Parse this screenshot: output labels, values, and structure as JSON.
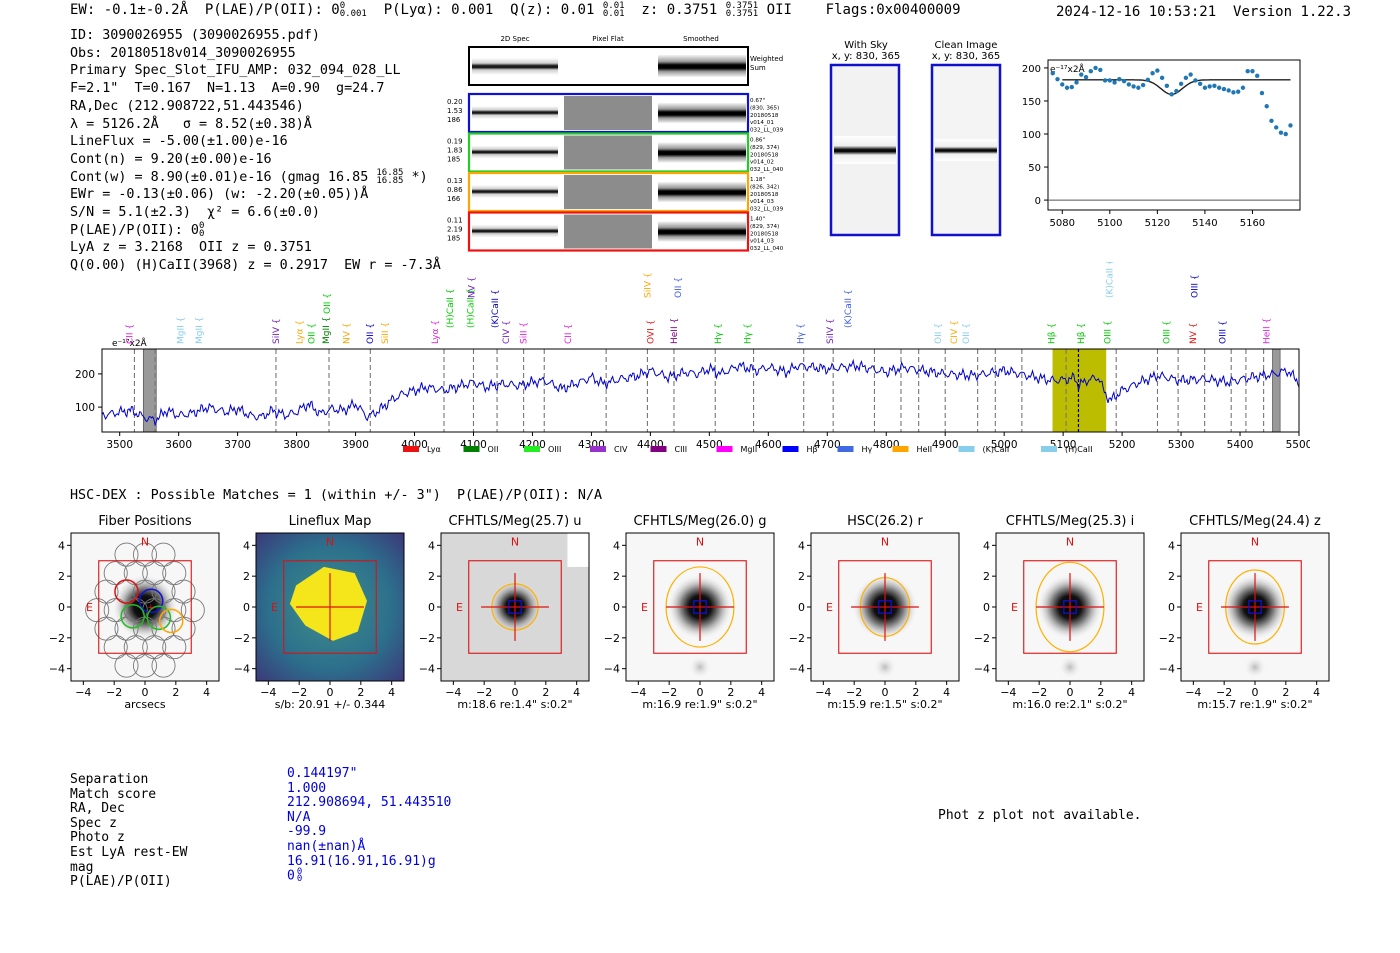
{
  "header": {
    "ew": "EW: -0.1±-0.2Å",
    "plae": "P(LAE)/P(OII): 0",
    "plae_sup": "0",
    "plae_sub": "0.001",
    "plya": "P(Lyα): 0.001",
    "qz": "Q(z): 0.01",
    "qz_sup": "0.01",
    "qz_sub": "0.01",
    "z": "z: 0.3751",
    "z_sup": "0.3751",
    "z_sub": "0.3751",
    "z_line": "OII",
    "flags": "Flags:0x00400009",
    "datetime": "2024-12-16 10:53:21",
    "version": "Version 1.22.3"
  },
  "info": {
    "id": "ID: 3090026955 (3090026955.pdf)",
    "obs": "Obs: 20180518v014_3090026955",
    "primary": "Primary Spec_Slot_IFU_AMP: 032_094_028_LL",
    "fparams": "F=2.1\"  T=0.167  N=1.13  A=0.90  g=24.7",
    "radec": "RA,Dec (212.908722,51.443546)",
    "lambda": "λ = 5126.2Å   σ = 8.52(±0.38)Å",
    "lineflux": "LineFlux = -5.00(±1.00)e-16",
    "contn": "Cont(n) = 9.20(±0.00)e-16",
    "contw": "Cont(w) = 8.90(±0.01)e-16 (gmag 16.85",
    "contw_sup": "16.85",
    "contw_sub": "16.85",
    "contw_end": " *)",
    "ewr": "EWr = -0.13(±0.06) (w: -2.20(±0.05))Å",
    "sn": "S/N = 5.1(±2.3)  χ² = 6.6(±0.0)",
    "plae": "P(LAE)/P(OII): 0",
    "plae_sup": "0",
    "plae_sub": "0",
    "lya": "LyA z = 3.2168  OII z = 0.3751",
    "q": "Q(0.00) (H)CaII(3968) z = 0.2917  EW r = -7.3Å"
  },
  "spec2d": {
    "col_titles": [
      "2D Spec",
      "Pixel Flat",
      "Smoothed"
    ],
    "weighted_label": "Weighted\nSum",
    "rows": [
      {
        "left": [
          "0.20",
          "1.53",
          "186"
        ],
        "right": [
          "0.67\"",
          "(830, 365)",
          "20180518",
          "v014_01",
          "032_LL_039"
        ],
        "color": "#1010d0"
      },
      {
        "left": [
          "0.19",
          "1.83",
          "185"
        ],
        "right": [
          "0.86\"",
          "(829, 374)",
          "20180518",
          "v014_02",
          "032_LL_040"
        ],
        "color": "#22cc22"
      },
      {
        "left": [
          "0.13",
          "0.86",
          "166"
        ],
        "right": [
          "1.18\"",
          "(826, 342)",
          "20180518",
          "v014_03",
          "032_LL_039"
        ],
        "color": "#ffa500"
      },
      {
        "left": [
          "0.11",
          "2.19",
          "185"
        ],
        "right": [
          "1.40\"",
          "(829, 374)",
          "20180518",
          "v014_03",
          "032_LL_040"
        ],
        "color": "#ee1111"
      }
    ]
  },
  "sky_panels": [
    {
      "title": "With Sky",
      "coords": "x, y: 830, 365"
    },
    {
      "title": "Clean Image",
      "coords": "x, y: 830, 365"
    }
  ],
  "zoom_chart": {
    "type": "scatter",
    "ylabel_note": "e⁻¹⁷x2Å",
    "x_ticks": [
      "5080",
      "5100",
      "5120",
      "5140",
      "5160"
    ],
    "y_ticks": [
      "0",
      "50",
      "100",
      "150",
      "200"
    ],
    "xlim": [
      5074,
      5180
    ],
    "ylim": [
      -15,
      212
    ],
    "points": [
      [
        5076,
        192
      ],
      [
        5078,
        183
      ],
      [
        5080,
        175
      ],
      [
        5082,
        170
      ],
      [
        5084,
        171
      ],
      [
        5086,
        178
      ],
      [
        5088,
        190
      ],
      [
        5090,
        186
      ],
      [
        5092,
        195
      ],
      [
        5094,
        200
      ],
      [
        5096,
        197
      ],
      [
        5098,
        181
      ],
      [
        5100,
        181
      ],
      [
        5102,
        178
      ],
      [
        5104,
        183
      ],
      [
        5106,
        180
      ],
      [
        5108,
        175
      ],
      [
        5110,
        172
      ],
      [
        5112,
        170
      ],
      [
        5114,
        174
      ],
      [
        5116,
        182
      ],
      [
        5118,
        192
      ],
      [
        5120,
        196
      ],
      [
        5122,
        185
      ],
      [
        5124,
        173
      ],
      [
        5126,
        160
      ],
      [
        5128,
        165
      ],
      [
        5130,
        176
      ],
      [
        5132,
        185
      ],
      [
        5134,
        190
      ],
      [
        5136,
        181
      ],
      [
        5138,
        176
      ],
      [
        5140,
        170
      ],
      [
        5142,
        172
      ],
      [
        5144,
        173
      ],
      [
        5146,
        170
      ],
      [
        5148,
        168
      ],
      [
        5150,
        166
      ],
      [
        5152,
        163
      ],
      [
        5154,
        164
      ],
      [
        5156,
        170
      ],
      [
        5158,
        195
      ],
      [
        5160,
        195
      ],
      [
        5162,
        188
      ],
      [
        5164,
        162
      ],
      [
        5166,
        142
      ],
      [
        5168,
        120
      ],
      [
        5170,
        110
      ],
      [
        5172,
        102
      ],
      [
        5174,
        100
      ],
      [
        5176,
        113
      ]
    ],
    "model": {
      "base": 182,
      "depth": 22,
      "center": 5126,
      "sigma": 4.5,
      "xmin": 5080,
      "xmax": 5176
    }
  },
  "chart_data": {
    "type": "line",
    "title": "",
    "ylabel_note": "e⁻¹⁷x2Å",
    "xlim": [
      3470,
      5500
    ],
    "ylim": [
      25,
      275
    ],
    "x_ticks": [
      "3500",
      "3600",
      "3700",
      "3800",
      "3900",
      "4000",
      "4100",
      "4200",
      "4300",
      "4400",
      "4500",
      "4600",
      "4700",
      "4800",
      "4900",
      "5000",
      "5100",
      "5200",
      "5300",
      "5400",
      "5500"
    ],
    "y_ticks": [
      "100",
      "200"
    ],
    "anchors": [
      [
        3470,
        75
      ],
      [
        3500,
        85
      ],
      [
        3520,
        90
      ],
      [
        3540,
        70
      ],
      [
        3560,
        60
      ],
      [
        3580,
        90
      ],
      [
        3600,
        75
      ],
      [
        3620,
        80
      ],
      [
        3650,
        100
      ],
      [
        3680,
        85
      ],
      [
        3700,
        95
      ],
      [
        3720,
        75
      ],
      [
        3740,
        70
      ],
      [
        3760,
        90
      ],
      [
        3780,
        75
      ],
      [
        3800,
        85
      ],
      [
        3820,
        110
      ],
      [
        3840,
        80
      ],
      [
        3860,
        95
      ],
      [
        3880,
        90
      ],
      [
        3900,
        110
      ],
      [
        3920,
        70
      ],
      [
        3940,
        90
      ],
      [
        3960,
        120
      ],
      [
        3980,
        140
      ],
      [
        4000,
        150
      ],
      [
        4020,
        160
      ],
      [
        4050,
        150
      ],
      [
        4080,
        165
      ],
      [
        4100,
        175
      ],
      [
        4120,
        160
      ],
      [
        4150,
        170
      ],
      [
        4180,
        165
      ],
      [
        4200,
        175
      ],
      [
        4220,
        180
      ],
      [
        4250,
        155
      ],
      [
        4280,
        175
      ],
      [
        4300,
        190
      ],
      [
        4320,
        170
      ],
      [
        4350,
        185
      ],
      [
        4380,
        195
      ],
      [
        4400,
        210
      ],
      [
        4430,
        190
      ],
      [
        4460,
        205
      ],
      [
        4480,
        200
      ],
      [
        4500,
        215
      ],
      [
        4520,
        200
      ],
      [
        4550,
        225
      ],
      [
        4580,
        210
      ],
      [
        4600,
        220
      ],
      [
        4630,
        205
      ],
      [
        4650,
        225
      ],
      [
        4700,
        215
      ],
      [
        4750,
        225
      ],
      [
        4800,
        205
      ],
      [
        4830,
        220
      ],
      [
        4860,
        210
      ],
      [
        4900,
        200
      ],
      [
        4950,
        195
      ],
      [
        5000,
        210
      ],
      [
        5040,
        195
      ],
      [
        5080,
        180
      ],
      [
        5100,
        182
      ],
      [
        5120,
        188
      ],
      [
        5126,
        165
      ],
      [
        5140,
        180
      ],
      [
        5160,
        190
      ],
      [
        5170,
        145
      ],
      [
        5180,
        120
      ],
      [
        5200,
        150
      ],
      [
        5230,
        175
      ],
      [
        5260,
        195
      ],
      [
        5300,
        180
      ],
      [
        5340,
        185
      ],
      [
        5380,
        175
      ],
      [
        5420,
        190
      ],
      [
        5460,
        200
      ],
      [
        5480,
        210
      ],
      [
        5500,
        175
      ]
    ],
    "dashed_lines": [
      3525,
      3560,
      3765,
      3855,
      3925,
      4050,
      4100,
      4140,
      4185,
      4220,
      4325,
      4395,
      4440,
      4510,
      4575,
      4660,
      4710,
      4780,
      4825,
      4855,
      4900,
      4955,
      4985,
      5030,
      5105,
      5190,
      5260,
      5295,
      5340,
      5385,
      5410,
      5440
    ],
    "gray_bands": [
      [
        3540,
        3562
      ],
      [
        5455,
        5468
      ]
    ],
    "yellow_band": [
      5082,
      5173
    ],
    "center_line": 5126,
    "annotations": [
      {
        "text": "CII",
        "x": 3522,
        "color": "#e020e0",
        "level": 0
      },
      {
        "text": "MgII",
        "x": 3608,
        "color": "#87ceeb",
        "level": 0
      },
      {
        "text": "MgII",
        "x": 3640,
        "color": "#87ceeb",
        "level": 0
      },
      {
        "text": "SiIV",
        "x": 3770,
        "color": "#7020c0",
        "level": 0
      },
      {
        "text": "Lyα",
        "x": 3810,
        "color": "#ffa500",
        "level": 0
      },
      {
        "text": "OII",
        "x": 3830,
        "color": "#00cc00",
        "level": 0
      },
      {
        "text": "MgII",
        "x": 3855,
        "color": "#008000",
        "level": 0
      },
      {
        "text": "OII",
        "x": 3857,
        "color": "#00cc00",
        "level": 2
      },
      {
        "text": "NV",
        "x": 3890,
        "color": "#ffa500",
        "level": 0
      },
      {
        "text": "OII",
        "x": 3930,
        "color": "#0000cc",
        "level": 0
      },
      {
        "text": "SiII",
        "x": 3955,
        "color": "#ffa500",
        "level": 0
      },
      {
        "text": "Lyα",
        "x": 4040,
        "color": "#e020e0",
        "level": 0
      },
      {
        "text": "(H)CaII",
        "x": 4065,
        "color": "#00cc00",
        "level": 1
      },
      {
        "text": "(H)CaII",
        "x": 4100,
        "color": "#00cc00",
        "level": 1
      },
      {
        "text": "NV",
        "x": 4102,
        "color": "#7020c0",
        "level": 3
      },
      {
        "text": "(K)CaII",
        "x": 4142,
        "color": "#0000cc",
        "level": 1
      },
      {
        "text": "CIV",
        "x": 4160,
        "color": "#7020c0",
        "level": 0
      },
      {
        "text": "SiII",
        "x": 4190,
        "color": "#e020e0",
        "level": 0
      },
      {
        "text": "CII",
        "x": 4265,
        "color": "#e020e0",
        "level": 0
      },
      {
        "text": "SiIV",
        "x": 4400,
        "color": "#ffa500",
        "level": 3
      },
      {
        "text": "OVI",
        "x": 4405,
        "color": "#ee1111",
        "level": 0
      },
      {
        "text": "HeII",
        "x": 4445,
        "color": "#800080",
        "level": 0
      },
      {
        "text": "OII",
        "x": 4452,
        "color": "#4060e0",
        "level": 3
      },
      {
        "text": "Hγ",
        "x": 4520,
        "color": "#00cc00",
        "level": 0
      },
      {
        "text": "Hγ",
        "x": 4570,
        "color": "#00cc00",
        "level": 0
      },
      {
        "text": "Hγ",
        "x": 4660,
        "color": "#4060e0",
        "level": 0
      },
      {
        "text": "SiIV",
        "x": 4710,
        "color": "#7020c0",
        "level": 0
      },
      {
        "text": "(K)CaII",
        "x": 4740,
        "color": "#4060e0",
        "level": 1
      },
      {
        "text": "OII",
        "x": 4893,
        "color": "#87ceeb",
        "level": 0
      },
      {
        "text": "CIV",
        "x": 4920,
        "color": "#ffa500",
        "level": 0
      },
      {
        "text": "OII",
        "x": 4940,
        "color": "#87ceeb",
        "level": 0
      },
      {
        "text": "Hβ",
        "x": 5085,
        "color": "#00cc00",
        "level": 0
      },
      {
        "text": "Hβ",
        "x": 5135,
        "color": "#00cc00",
        "level": 0
      },
      {
        "text": "OIII",
        "x": 5180,
        "color": "#00cc00",
        "level": 0
      },
      {
        "text": "(K)CaII",
        "x": 5184,
        "color": "#87ceeb",
        "level": 3
      },
      {
        "text": "OIII",
        "x": 5280,
        "color": "#00cc00",
        "level": 0
      },
      {
        "text": "NV",
        "x": 5325,
        "color": "#ee1111",
        "level": 0
      },
      {
        "text": "OIII",
        "x": 5328,
        "color": "#0000cc",
        "level": 3
      },
      {
        "text": "OIII",
        "x": 5375,
        "color": "#0000cc",
        "level": 0
      },
      {
        "text": "HeII",
        "x": 5450,
        "color": "#e020e0",
        "level": 0
      }
    ],
    "legend": [
      {
        "name": "Lyα",
        "color": "#ee1111"
      },
      {
        "name": "OII",
        "color": "#008000"
      },
      {
        "name": "OIII",
        "color": "#22ee22"
      },
      {
        "name": "CIV",
        "color": "#9932cc"
      },
      {
        "name": "CIII",
        "color": "#800080"
      },
      {
        "name": "MgII",
        "color": "#ff00ff"
      },
      {
        "name": "Hβ",
        "color": "#0000ff"
      },
      {
        "name": "Hγ",
        "color": "#4169e1"
      },
      {
        "name": "HeII",
        "color": "#ffa500"
      },
      {
        "name": "(K)CaII",
        "color": "#87ceeb"
      },
      {
        "name": "(H)CaII",
        "color": "#87ceeb"
      }
    ]
  },
  "hsc": {
    "line": "HSC-DEX : Possible Matches = 1 (within +/- 3\")  P(LAE)/P(OII): N/A"
  },
  "cutouts": [
    {
      "title": "Fiber Positions",
      "type": "fiber",
      "xlabel": "arcsecs",
      "sublabel": ""
    },
    {
      "title": "Lineflux Map",
      "type": "lineflux",
      "xlabel": "",
      "sublabel": "s/b: 20.91 +/- 0.344"
    },
    {
      "title": "CFHTLS/Meg(25.7) u",
      "type": "u",
      "xlabel": "",
      "sublabel": "m:18.6  re:1.4\"  s:0.2\""
    },
    {
      "title": "CFHTLS/Meg(26.0) g",
      "type": "band",
      "xlabel": "",
      "sublabel": "m:16.9  re:1.9\"  s:0.2\""
    },
    {
      "title": "HSC(26.2) r",
      "type": "band",
      "xlabel": "",
      "sublabel": "m:15.9  re:1.5\"  s:0.2\""
    },
    {
      "title": "CFHTLS/Meg(25.3) i",
      "type": "band",
      "xlabel": "",
      "sublabel": "m:16.0  re:2.1\"  s:0.2\""
    },
    {
      "title": "CFHTLS/Meg(24.4) z",
      "type": "band",
      "xlabel": "",
      "sublabel": "m:15.7  re:1.9\"  s:0.2\""
    }
  ],
  "cutout_axes": {
    "ticks": [
      "−4",
      "−2",
      "0",
      "2",
      "4"
    ],
    "north": "N",
    "east": "E"
  },
  "match": {
    "labels": [
      "Separation",
      "Match score",
      "RA, Dec",
      "Spec z",
      "Photo z",
      "Est LyA rest-EW",
      "mag",
      "P(LAE)/P(OII)"
    ],
    "values": [
      "0.144197\"",
      "1.000",
      "212.908694, 51.443510",
      "N/A",
      "-99.9",
      "nan(±nan)Å",
      "16.91(16.91,16.91)g",
      "0"
    ],
    "plae_sup": "0",
    "plae_sub": "0"
  },
  "photz": "Phot z plot not available.",
  "colors": {
    "spectrum": "#0000cc",
    "zoom_points": "#1f77b4",
    "yellow": "#bcbd00",
    "red_box": "#dd1111",
    "ellipse": "#ffb000"
  }
}
